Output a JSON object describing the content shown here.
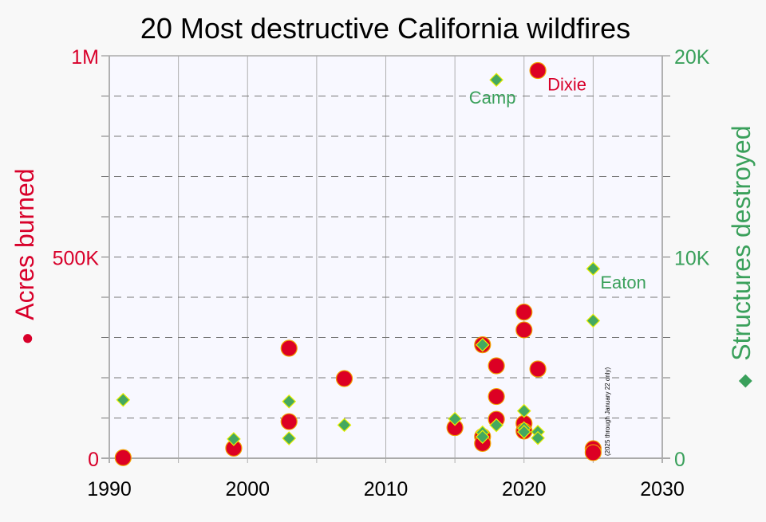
{
  "chart_data": {
    "type": "scatter",
    "title": "20 Most destructive California wildfires",
    "xlabel": "",
    "ylabel_left": "Acres burned",
    "ylabel_right": "Structures destroyed",
    "left_marker_glyph": "●",
    "right_marker_glyph": "◆",
    "xlim": [
      1990,
      2030
    ],
    "ylim_left": [
      0,
      1000000
    ],
    "ylim_right": [
      0,
      20000
    ],
    "x_ticks": [
      1990,
      2000,
      2010,
      2020,
      2030
    ],
    "x_tick_labels": [
      "1990",
      "2000",
      "2010",
      "2020",
      "2030"
    ],
    "left_ticks": [
      0,
      500000,
      1000000
    ],
    "left_tick_labels": [
      "0",
      "500K",
      "1M"
    ],
    "right_ticks": [
      0,
      10000,
      20000
    ],
    "right_tick_labels": [
      "0",
      "10K",
      "20K"
    ],
    "grid": true,
    "colors": {
      "acres": "#dc0024",
      "acres_edge": "#f2a000",
      "structures": "#44a860",
      "structures_edge": "#e8f000",
      "plot_bg": "#f8f8ff",
      "page_bg": "#f8f8f8"
    },
    "series": [
      {
        "name": "Acres burned",
        "axis": "left",
        "marker": "circle",
        "points": [
          {
            "x": 1991,
            "y": 1520
          },
          {
            "x": 1999,
            "y": 25000
          },
          {
            "x": 2003,
            "y": 273246
          },
          {
            "x": 2003,
            "y": 91000
          },
          {
            "x": 2007,
            "y": 197990
          },
          {
            "x": 2015,
            "y": 76067
          },
          {
            "x": 2017,
            "y": 281893
          },
          {
            "x": 2017,
            "y": 54000
          },
          {
            "x": 2017,
            "y": 36807
          },
          {
            "x": 2018,
            "y": 229651
          },
          {
            "x": 2018,
            "y": 153336
          },
          {
            "x": 2018,
            "y": 96949
          },
          {
            "x": 2020,
            "y": 363220
          },
          {
            "x": 2020,
            "y": 318935
          },
          {
            "x": 2020,
            "y": 86509
          },
          {
            "x": 2020,
            "y": 67484
          },
          {
            "x": 2021,
            "y": 963309
          },
          {
            "x": 2021,
            "y": 221835
          },
          {
            "x": 2025,
            "y": 23707
          },
          {
            "x": 2025,
            "y": 14021
          }
        ]
      },
      {
        "name": "Structures destroyed",
        "axis": "right",
        "marker": "diamond",
        "points": [
          {
            "x": 1991,
            "y": 2900
          },
          {
            "x": 1999,
            "y": 955
          },
          {
            "x": 2003,
            "y": 2820
          },
          {
            "x": 2003,
            "y": 990
          },
          {
            "x": 2007,
            "y": 1650
          },
          {
            "x": 2015,
            "y": 1955
          },
          {
            "x": 2017,
            "y": 5636
          },
          {
            "x": 2017,
            "y": 1281
          },
          {
            "x": 2017,
            "y": 1063
          },
          {
            "x": 2018,
            "y": 18804
          },
          {
            "x": 2018,
            "y": 1643
          },
          {
            "x": 2020,
            "y": 2352
          },
          {
            "x": 2020,
            "y": 1490
          },
          {
            "x": 2020,
            "y": 1308
          },
          {
            "x": 2021,
            "y": 1311
          },
          {
            "x": 2021,
            "y": 1003
          },
          {
            "x": 2025,
            "y": 9418
          },
          {
            "x": 2025,
            "y": 6837
          }
        ]
      }
    ],
    "annotations": [
      {
        "text": "Dixie",
        "series": "Acres burned",
        "x": 2021,
        "y": 963309
      },
      {
        "text": "Camp",
        "series": "Structures destroyed",
        "x": 2018,
        "y": 18804
      },
      {
        "text": "Eaton",
        "series": "Structures destroyed",
        "x": 2025,
        "y": 9418
      }
    ],
    "note": "(2025 through January 22 only)"
  }
}
